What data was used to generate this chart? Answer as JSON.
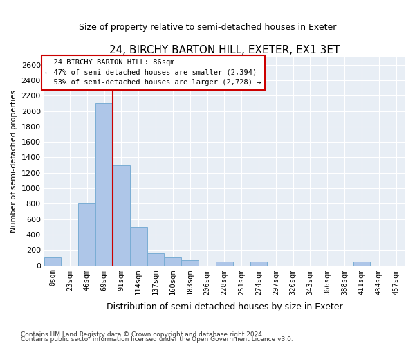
{
  "title": "24, BIRCHY BARTON HILL, EXETER, EX1 3ET",
  "subtitle": "Size of property relative to semi-detached houses in Exeter",
  "xlabel": "Distribution of semi-detached houses by size in Exeter",
  "ylabel": "Number of semi-detached properties",
  "bin_labels": [
    "0sqm",
    "23sqm",
    "46sqm",
    "69sqm",
    "91sqm",
    "114sqm",
    "137sqm",
    "160sqm",
    "183sqm",
    "206sqm",
    "228sqm",
    "251sqm",
    "274sqm",
    "297sqm",
    "320sqm",
    "343sqm",
    "366sqm",
    "388sqm",
    "411sqm",
    "434sqm",
    "457sqm"
  ],
  "bar_heights": [
    100,
    0,
    800,
    2100,
    1300,
    500,
    160,
    100,
    70,
    0,
    50,
    0,
    50,
    0,
    0,
    0,
    0,
    0,
    50,
    0,
    0
  ],
  "bar_color": "#aec6e8",
  "bar_edgecolor": "#7aadd4",
  "property_size": 86,
  "property_label": "24 BIRCHY BARTON HILL: 86sqm",
  "pct_smaller": 47,
  "num_smaller": 2394,
  "pct_larger": 53,
  "num_larger": 2728,
  "red_line_color": "#cc0000",
  "annotation_box_color": "#cc0000",
  "ylim": [
    0,
    2700
  ],
  "yticks": [
    0,
    200,
    400,
    600,
    800,
    1000,
    1200,
    1400,
    1600,
    1800,
    2000,
    2200,
    2400,
    2600
  ],
  "bg_color": "#e8eef5",
  "footnote1": "Contains HM Land Registry data © Crown copyright and database right 2024.",
  "footnote2": "Contains public sector information licensed under the Open Government Licence v3.0."
}
